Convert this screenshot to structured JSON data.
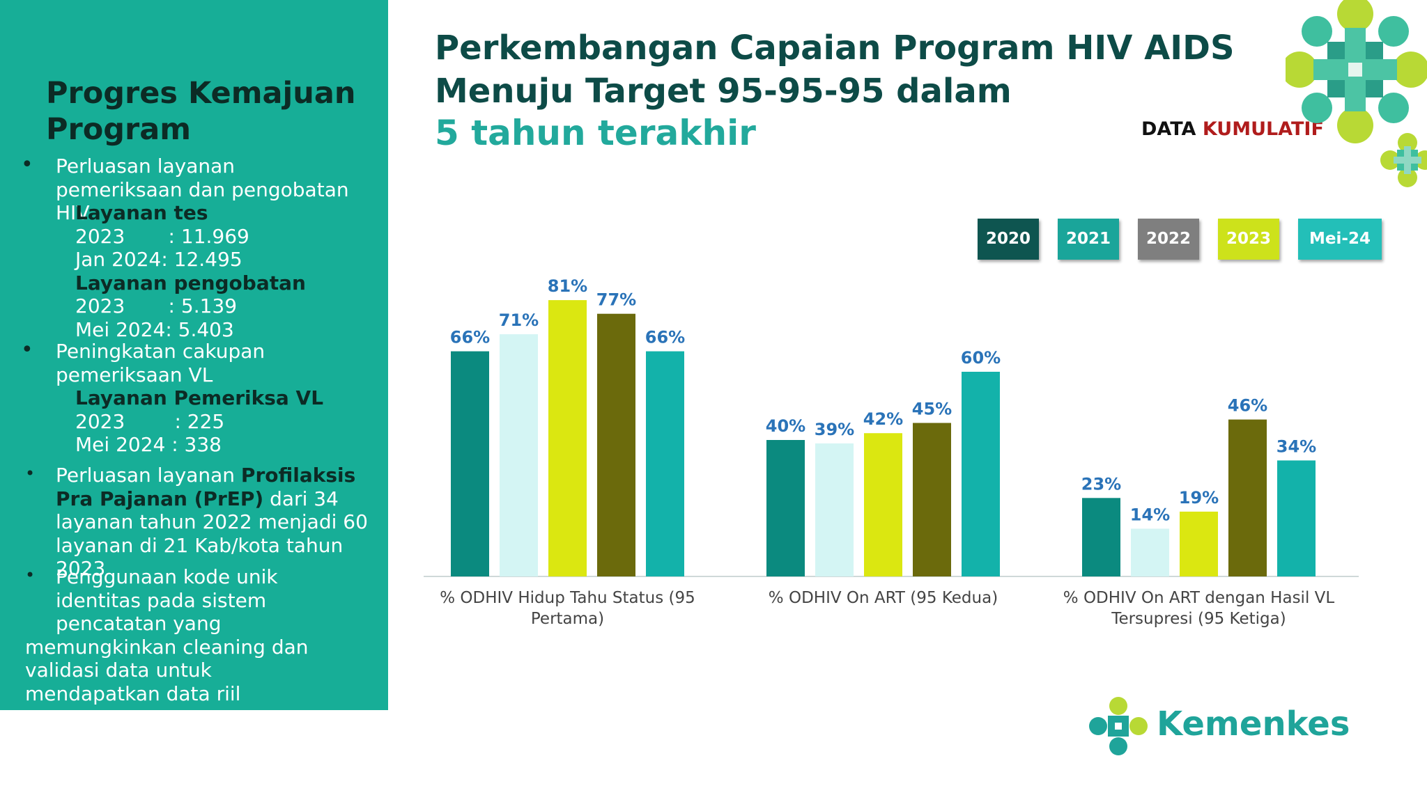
{
  "left": {
    "title": "Progres Kemajuan Program",
    "b1": {
      "text": "Perluasan layanan pemeriksaan dan pengobatan HIV",
      "h1": "Layanan tes",
      "r1": "2023       : 11.969",
      "r2": "Jan 2024: 12.495",
      "h2": "Layanan pengobatan",
      "r3": "2023       : 5.139",
      "r4": "Mei 2024: 5.403"
    },
    "b2": {
      "text": "Peningkatan cakupan pemeriksaan VL",
      "h1": "Layanan Pemeriksa VL",
      "r1": "2023        : 225",
      "r2": "Mei 2024 : 338"
    },
    "b3": {
      "pre": "Perluasan layanan ",
      "bold": "Profilaksis Pra Pajanan (PrEP)",
      "post": " dari 34 layanan tahun 2022 menjadi 60 layanan di 21 Kab/kota tahun 2023"
    },
    "b4": {
      "l1": "Penggunaan kode unik",
      "l2": "identitas pada sistem",
      "l3": "pencatatan yang",
      "l4": "memungkinkan cleaning dan",
      "l5": "validasi data untuk",
      "l6": "mendapatkan data riil"
    }
  },
  "header": {
    "title_line1": "Perkembangan Capaian Program HIV AIDS",
    "title_line2": "Menuju Target 95-95-95 dalam",
    "subtitle": "5 tahun terakhir",
    "data_label": "DATA",
    "data_label_red": "KUMULATIF"
  },
  "logo": {
    "text": "Kemenkes"
  },
  "colors": {
    "s2020": "#0b8a7f",
    "s2021": "#d4f5f4",
    "s2022": "#dbe711",
    "s2023": "#6b6a0c",
    "s2024": "#13b2aa",
    "legend2020": "#0e5550",
    "legend2021": "#1aa59a",
    "legend2022": "#7f7f7f",
    "legend2023": "#cde21b",
    "legend2024": "#23bfb8"
  },
  "chart_data": {
    "type": "bar",
    "categories": [
      "% ODHIV Hidup Tahu Status (95 Pertama)",
      "% ODHIV On ART (95 Kedua)",
      "% ODHIV On ART dengan Hasil VL Tersupresi (95 Ketiga)"
    ],
    "series": [
      {
        "name": "2020",
        "values": [
          66,
          40,
          23
        ]
      },
      {
        "name": "2021",
        "values": [
          71,
          39,
          14
        ]
      },
      {
        "name": "2022",
        "values": [
          81,
          42,
          19
        ]
      },
      {
        "name": "2023",
        "values": [
          77,
          45,
          46
        ]
      },
      {
        "name": "Mei-24",
        "values": [
          66,
          60,
          34
        ]
      }
    ],
    "ylim": [
      0,
      100
    ],
    "legend_position": "top-right",
    "grid": false
  }
}
